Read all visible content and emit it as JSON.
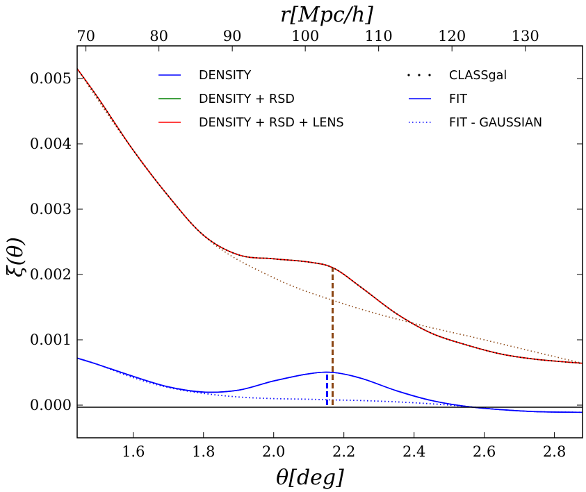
{
  "chart_data": {
    "type": "line",
    "xlabel": "θ[deg]",
    "ylabel": "ξ(θ)",
    "top_xlabel": "r[Mpc/h]",
    "xlim": [
      1.44,
      2.88
    ],
    "ylim": [
      -0.0005,
      0.0055
    ],
    "x_ticks": [
      1.6,
      1.8,
      2.0,
      2.2,
      2.4,
      2.6,
      2.8
    ],
    "x_tick_labels": [
      "1.6",
      "1.8",
      "2.0",
      "2.2",
      "2.4",
      "2.6",
      "2.8"
    ],
    "y_ticks": [
      0.0,
      0.001,
      0.002,
      0.003,
      0.004,
      0.005
    ],
    "y_tick_labels": [
      "0.000",
      "0.001",
      "0.002",
      "0.003",
      "0.004",
      "0.005"
    ],
    "top_x_ticks": [
      70,
      80,
      90,
      100,
      110,
      120,
      130
    ],
    "top_x_tick_labels": [
      "70",
      "80",
      "90",
      "100",
      "110",
      "120",
      "130"
    ],
    "top_x_positions_deg": [
      1.465,
      1.673,
      1.882,
      2.09,
      2.299,
      2.508,
      2.717
    ],
    "grid": false,
    "legend_position": "top",
    "zero_line": true,
    "x": [
      1.44,
      1.5,
      1.6,
      1.7,
      1.8,
      1.9,
      2.0,
      2.1,
      2.17,
      2.25,
      2.35,
      2.45,
      2.55,
      2.65,
      2.75,
      2.88
    ],
    "series": [
      {
        "name": "DENSITY",
        "color": "#0000ff",
        "style": "solid",
        "values": [
          0.00072,
          0.00062,
          0.00044,
          0.00028,
          0.0002,
          0.00023,
          0.00037,
          0.00048,
          0.0005,
          0.00041,
          0.00022,
          7e-05,
          -2e-05,
          -7e-05,
          -0.0001,
          -0.00011
        ]
      },
      {
        "name": "DENSITY + RSD",
        "color": "#008000",
        "style": "solid",
        "values": [
          0.00515,
          0.0047,
          0.0039,
          0.0032,
          0.0026,
          0.0023,
          0.00224,
          0.00219,
          0.0021,
          0.0018,
          0.0014,
          0.0011,
          0.00092,
          0.00078,
          0.0007,
          0.00064
        ]
      },
      {
        "name": "DENSITY + RSD + LENS",
        "color": "#ff0000",
        "style": "solid",
        "values": [
          0.00515,
          0.0047,
          0.0039,
          0.0032,
          0.0026,
          0.0023,
          0.00224,
          0.00219,
          0.0021,
          0.0018,
          0.0014,
          0.0011,
          0.00092,
          0.00078,
          0.0007,
          0.00064
        ]
      },
      {
        "name": "CLASSgal",
        "color": "#000000",
        "style": "dotted",
        "values": [
          0.00515,
          0.0047,
          0.0039,
          0.0032,
          0.0026,
          0.0023,
          0.00224,
          0.00219,
          0.0021,
          0.0018,
          0.0014,
          0.0011,
          0.00092,
          0.00078,
          0.0007,
          0.00064
        ]
      },
      {
        "name": "FIT",
        "color": "#0000ff",
        "style": "solid",
        "values": [
          0.00072,
          0.00062,
          0.00044,
          0.00028,
          0.0002,
          0.00023,
          0.00037,
          0.00048,
          0.0005,
          0.00041,
          0.00022,
          7e-05,
          -2e-05,
          -7e-05,
          -0.0001,
          -0.00011
        ]
      },
      {
        "name": "FIT - GAUSSIAN",
        "color": "#0000ff",
        "style": "dotted",
        "values": [
          0.00072,
          0.00062,
          0.00042,
          0.00027,
          0.00018,
          0.000125,
          0.0001,
          9e-05,
          8e-05,
          7e-05,
          5e-05,
          2e-05,
          -2e-05,
          -7e-05,
          -0.0001,
          -0.00011
        ]
      }
    ],
    "extra_curves": [
      {
        "color": "#8b4513",
        "style": "dotted",
        "x": [
          1.44,
          1.6,
          1.8,
          2.0,
          2.2,
          2.4,
          2.6,
          2.88
        ],
        "values": [
          0.00515,
          0.0039,
          0.0026,
          0.00195,
          0.00155,
          0.00125,
          0.001,
          0.00064
        ]
      }
    ],
    "peak_markers": [
      {
        "color": "#8b4513",
        "x": 2.168,
        "y_from": 0.0,
        "y_to": 0.0021
      },
      {
        "color": "#0000ff",
        "x": 2.152,
        "y_from": 0.0,
        "y_to": 0.0005
      }
    ]
  }
}
